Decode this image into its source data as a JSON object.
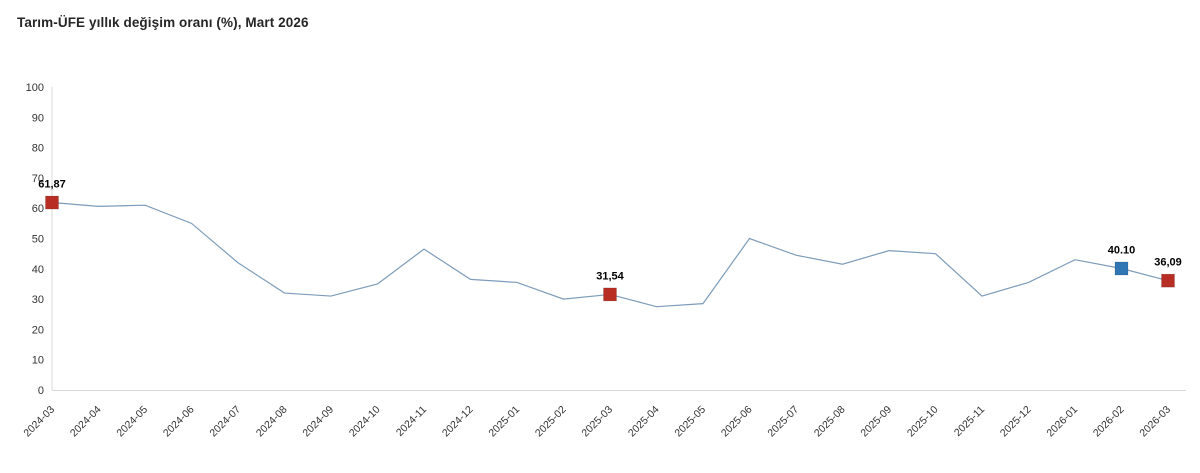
{
  "header": {
    "title": "Tarım-ÜFE yıllık değişim oranı (%), Mart 2026"
  },
  "chart_data": {
    "type": "line",
    "title": "Tarım-ÜFE yıllık değişim oranı (%), Mart 2026",
    "xlabel": "",
    "ylabel": "",
    "ylim": [
      0,
      100
    ],
    "y_ticks": [
      0,
      10,
      20,
      30,
      40,
      50,
      60,
      70,
      80,
      90,
      100
    ],
    "grid": false,
    "legend": "none",
    "x": [
      "2024-03",
      "2024-04",
      "2024-05",
      "2024-06",
      "2024-07",
      "2024-08",
      "2024-09",
      "2024-10",
      "2024-11",
      "2024-12",
      "2025-01",
      "2025-02",
      "2025-03",
      "2025-04",
      "2025-05",
      "2025-06",
      "2025-07",
      "2025-08",
      "2025-09",
      "2025-10",
      "2025-11",
      "2025-12",
      "2026-01",
      "2026-02",
      "2026-03"
    ],
    "values": [
      61.87,
      60.6,
      61.0,
      55.0,
      42.0,
      32.0,
      31.0,
      35.0,
      46.5,
      36.5,
      35.5,
      30.0,
      31.54,
      27.5,
      28.5,
      50.0,
      44.5,
      41.5,
      46.0,
      45.0,
      31.0,
      35.5,
      43.0,
      40.1,
      36.09
    ],
    "labeled_points": [
      {
        "index": 0,
        "label": "61,87",
        "value": 61.87,
        "marker_color": "#b82e24"
      },
      {
        "index": 12,
        "label": "31,54",
        "value": 31.54,
        "marker_color": "#b82e24"
      },
      {
        "index": 23,
        "label": "40.10",
        "value": 40.1,
        "marker_color": "#3076b5"
      },
      {
        "index": 24,
        "label": "36,09",
        "value": 36.09,
        "marker_color": "#b82e24"
      }
    ],
    "colors": {
      "line": "#7d9cba",
      "axis": "#d9d9d9",
      "marker_red": "#b82e24",
      "marker_blue": "#3076b5"
    }
  }
}
